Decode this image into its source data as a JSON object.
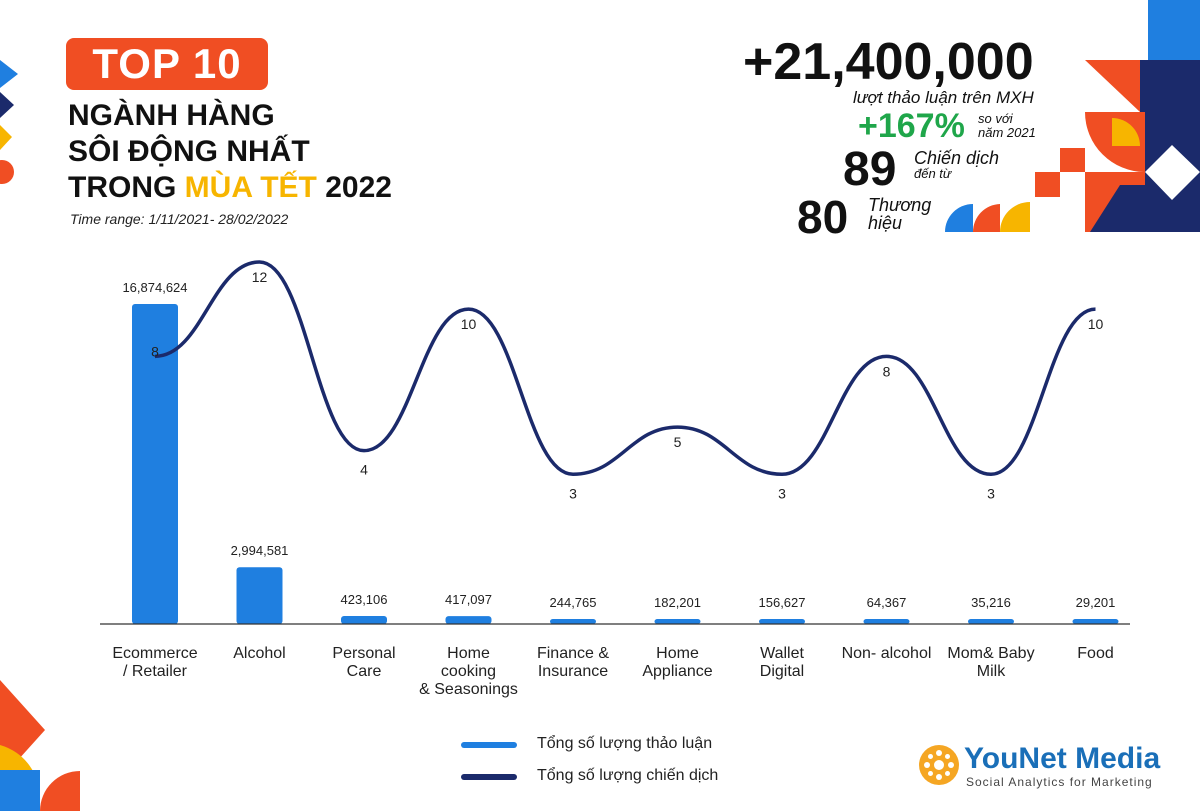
{
  "header": {
    "badge": "TOP 10",
    "line1": "NGÀNH HÀNG",
    "line2": "SÔI ĐỘNG NHẤT",
    "line3_pre": "TRONG ",
    "line3_accent": "MÙA TẾT",
    "line3_post": " 2022",
    "time_range": "Time range: 1/11/2021- 28/02/2022"
  },
  "stats": {
    "total": "+21,400,000",
    "total_note": "lượt thảo luận trên MXH",
    "growth": "+167%",
    "growth_note_1": "so với",
    "growth_note_2": "năm 2021",
    "campaigns": "89",
    "campaigns_note_1": "Chiến dịch",
    "campaigns_note_2": "đến từ",
    "brands": "80",
    "brands_note_1": "Thương",
    "brands_note_2": "hiệu"
  },
  "colors": {
    "bar": "#1F7FE0",
    "line": "#1B2A6B",
    "accent_red": "#F04E23",
    "accent_yellow": "#F7B500",
    "accent_blue": "#1F7FE0",
    "accent_navy": "#1B2A6B",
    "green": "#1FA64A"
  },
  "chart_data": {
    "type": "bar",
    "categories": [
      [
        "Ecommerce",
        "/ Retailer"
      ],
      [
        "Alcohol"
      ],
      [
        "Personal",
        "Care"
      ],
      [
        "Home",
        "cooking",
        "& Seasonings"
      ],
      [
        "Finance &",
        "Insurance"
      ],
      [
        "Home",
        "Appliance"
      ],
      [
        "Wallet",
        "Digital"
      ],
      [
        "Non- alcohol"
      ],
      [
        "Mom& Baby",
        "Milk"
      ],
      [
        "Food"
      ]
    ],
    "series": [
      {
        "name": "Tổng số lượng thảo luận",
        "type": "bar",
        "values": [
          16874624,
          2994581,
          423106,
          417097,
          244765,
          182201,
          156627,
          64367,
          35216,
          29201
        ],
        "labels": [
          "16,874,624",
          "2,994,581",
          "423,106",
          "417,097",
          "244,765",
          "182,201",
          "156,627",
          "64,367",
          "35,216",
          "29,201"
        ]
      },
      {
        "name": "Tổng số lượng chiến dịch",
        "type": "line",
        "values": [
          8,
          12,
          4,
          10,
          3,
          5,
          3,
          8,
          3,
          10
        ]
      }
    ],
    "legend_position": "bottom-center"
  },
  "logo": {
    "text": "YouNet Media",
    "tagline": "Social Analytics for Marketing"
  }
}
